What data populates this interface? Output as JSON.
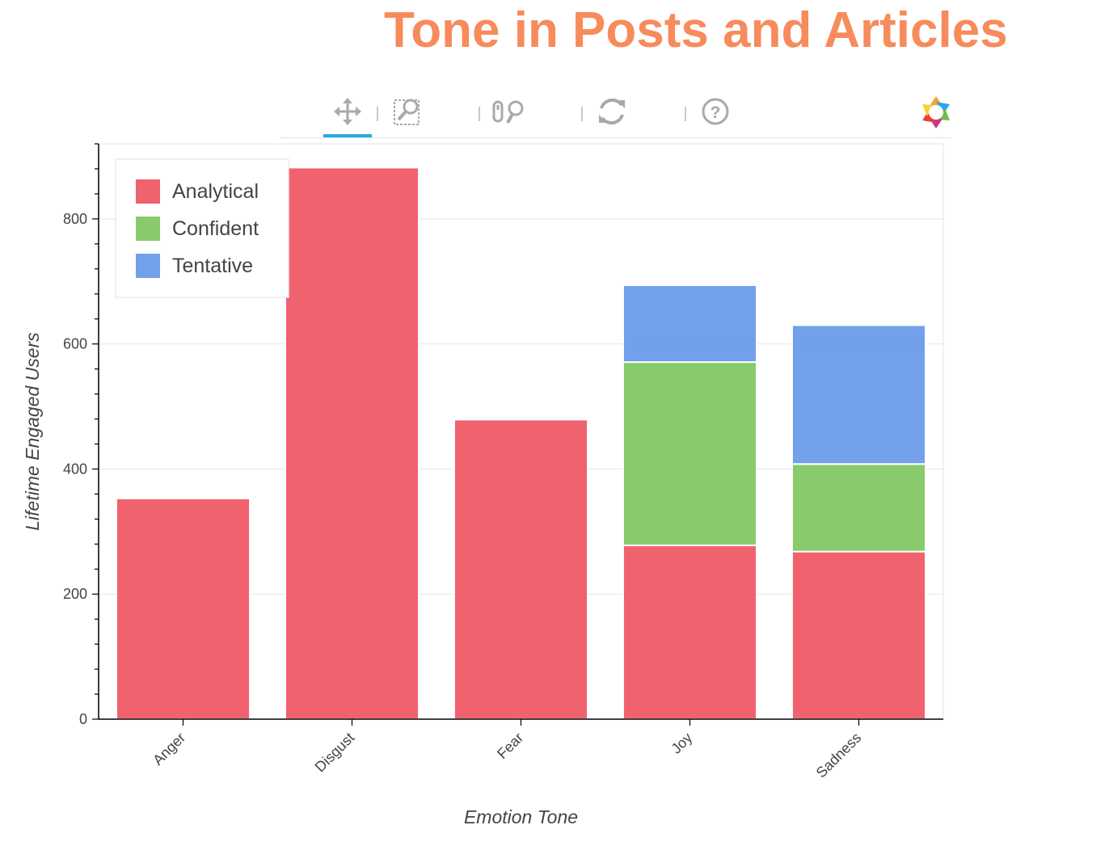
{
  "title": "Tone in Posts and Articles",
  "toolbar": {
    "tools": [
      {
        "name": "pan",
        "active": true
      },
      {
        "name": "box-zoom",
        "active": false
      },
      {
        "name": "wheel-zoom",
        "active": false
      },
      {
        "name": "reset",
        "active": false
      },
      {
        "name": "help",
        "active": false
      }
    ]
  },
  "chart_data": {
    "type": "bar",
    "stacked": true,
    "categories": [
      "Anger",
      "Disgust",
      "Fear",
      "Joy",
      "Sadness"
    ],
    "series": [
      {
        "name": "Analytical",
        "color": "#f0515f",
        "values": [
          353,
          882,
          479,
          278,
          268
        ]
      },
      {
        "name": "Confident",
        "color": "#7cc45c",
        "values": [
          0,
          0,
          0,
          293,
          140
        ]
      },
      {
        "name": "Tentative",
        "color": "#6396e9",
        "values": [
          0,
          0,
          0,
          123,
          222
        ]
      }
    ],
    "xlabel": "Emotion Tone",
    "ylabel": "Lifetime Engaged Users",
    "ylim": [
      0,
      920
    ],
    "yticks": [
      0,
      200,
      400,
      600,
      800
    ],
    "grid": true,
    "legend_position": "top-left"
  }
}
